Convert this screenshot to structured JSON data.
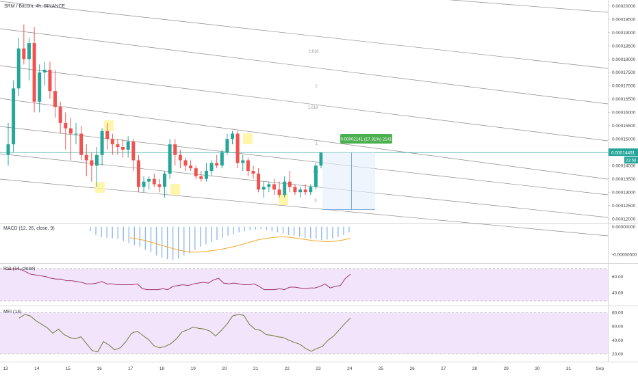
{
  "header": {
    "title": "SRM / Bitcoin, 4h, BINANCE"
  },
  "chart_data": [
    {
      "type": "candlestick",
      "title": "SRM / Bitcoin, 4h, BINANCE",
      "y_ticks": [
        "0.00012000",
        "0.00012500",
        "0.00013000",
        "0.00013500",
        "0.00014000",
        "0.00014500",
        "0.00015000",
        "0.00015500",
        "0.00016000",
        "0.00016500",
        "0.00017000",
        "0.00017500",
        "0.00018000",
        "0.00018500",
        "0.00019000",
        "0.00019500",
        "0.00020000"
      ],
      "ylim": [
        0.0001185,
        0.0002022
      ],
      "x_ticks": [
        "13",
        "14",
        "15",
        "16",
        "17",
        "18",
        "19",
        "20",
        "21",
        "22",
        "23",
        "24",
        "25",
        "26",
        "27",
        "28",
        "29",
        "30",
        "31",
        "Sep"
      ],
      "x_start_day": 13,
      "candles_per_day": 6,
      "ohlc": [
        [
          0.000144,
          0.000156,
          0.00014,
          0.000148
        ],
        [
          0.000148,
          0.000172,
          0.000145,
          0.000169
        ],
        [
          0.000169,
          0.000188,
          0.000166,
          0.000184
        ],
        [
          0.000184,
          0.000193,
          0.000178,
          0.00018
        ],
        [
          0.00018,
          0.000188,
          0.000172,
          0.000186
        ],
        [
          0.000186,
          0.000192,
          0.00016,
          0.000164
        ],
        [
          0.000164,
          0.000178,
          0.00016,
          0.000175
        ],
        [
          0.000175,
          0.000179,
          0.00017,
          0.000176
        ],
        [
          0.000176,
          0.000179,
          0.000165,
          0.000168
        ],
        [
          0.000168,
          0.000176,
          0.000158,
          0.000162
        ],
        [
          0.000162,
          0.000164,
          0.000152,
          0.000156
        ],
        [
          0.000156,
          0.00016,
          0.000146,
          0.000154
        ],
        [
          0.000154,
          0.000158,
          0.000142,
          0.000152
        ],
        [
          0.000152,
          0.000156,
          0.000148,
          0.000152
        ],
        [
          0.000152,
          0.000155,
          0.000142,
          0.000144
        ],
        [
          0.000144,
          0.000148,
          0.000136,
          0.000142
        ],
        [
          0.000142,
          0.000145,
          0.000134,
          0.00014
        ],
        [
          0.00014,
          0.000147,
          0.000132,
          0.000144
        ],
        [
          0.000144,
          0.000154,
          0.00014,
          0.000153
        ],
        [
          0.000153,
          0.000156,
          0.000146,
          0.00015
        ],
        [
          0.00015,
          0.000152,
          0.000144,
          0.000148
        ],
        [
          0.000148,
          0.00015,
          0.000144,
          0.000147
        ],
        [
          0.000147,
          0.00015,
          0.000143,
          0.000146
        ],
        [
          0.000146,
          0.000151,
          0.000143,
          0.000149
        ],
        [
          0.000149,
          0.00015,
          0.000138,
          0.000142
        ],
        [
          0.000142,
          0.000144,
          0.00013,
          0.000132
        ],
        [
          0.000132,
          0.000136,
          0.00013,
          0.000134
        ],
        [
          0.000134,
          0.000136,
          0.000131,
          0.000135
        ],
        [
          0.000135,
          0.000137,
          0.000132,
          0.000133
        ],
        [
          0.000133,
          0.000135,
          0.00013,
          0.000132
        ],
        [
          0.000132,
          0.000138,
          0.000128,
          0.000137
        ],
        [
          0.000137,
          0.00015,
          0.000135,
          0.000148
        ],
        [
          0.000148,
          0.00015,
          0.00014,
          0.000144
        ],
        [
          0.000144,
          0.000146,
          0.000139,
          0.000142
        ],
        [
          0.000142,
          0.000143,
          0.000138,
          0.00014
        ],
        [
          0.00014,
          0.000142,
          0.000138,
          0.000139
        ],
        [
          0.000139,
          0.00014,
          0.000135,
          0.000136
        ],
        [
          0.000136,
          0.000138,
          0.000134,
          0.000135
        ],
        [
          0.000135,
          0.000141,
          0.000134,
          0.000138
        ],
        [
          0.000138,
          0.000142,
          0.000136,
          0.000141
        ],
        [
          0.000141,
          0.000144,
          0.000139,
          0.00014
        ],
        [
          0.00014,
          0.000146,
          0.000139,
          0.000145
        ],
        [
          0.000145,
          0.000152,
          0.000144,
          0.00015
        ],
        [
          0.00015,
          0.000153,
          0.000148,
          0.000152
        ],
        [
          0.000152,
          0.000153,
          0.000139,
          0.000141
        ],
        [
          0.000141,
          0.000144,
          0.000138,
          0.000142
        ],
        [
          0.000142,
          0.000143,
          0.000136,
          0.000138
        ],
        [
          0.000138,
          0.00014,
          0.000135,
          0.000137
        ],
        [
          0.000137,
          0.000139,
          0.00013,
          0.000131
        ],
        [
          0.000131,
          0.000134,
          0.000128,
          0.000132
        ],
        [
          0.000132,
          0.000134,
          0.00013,
          0.000133
        ],
        [
          0.000133,
          0.000135,
          0.000129,
          0.000131
        ],
        [
          0.000131,
          0.000134,
          0.000128,
          0.000129
        ],
        [
          0.000129,
          0.000136,
          0.000128,
          0.000134
        ],
        [
          0.000134,
          0.000138,
          0.00013,
          0.000132
        ],
        [
          0.000132,
          0.000133,
          0.000129,
          0.00013
        ],
        [
          0.00013,
          0.000132,
          0.000128,
          0.000131
        ],
        [
          0.000131,
          0.000133,
          0.000129,
          0.00013
        ],
        [
          0.00013,
          0.000133,
          0.000129,
          0.000132
        ],
        [
          0.000132,
          0.000141,
          0.000131,
          0.00014
        ],
        [
          0.00014,
          0.000145,
          0.000139,
          0.0001449
        ]
      ],
      "last_price": "0.00014491",
      "countdown": "23:58",
      "measure_label": "0.00002141 (17.31%) 2141",
      "fib_labels": [
        "2.618",
        "2",
        "1.618",
        "1",
        "0.5",
        "0"
      ],
      "colors": {
        "up": "#26a69a",
        "down": "#ef5350",
        "highlight": "#fff59d",
        "price_line": "#26a69a",
        "measure": "#4caf50"
      }
    },
    {
      "type": "bar",
      "title": "MACD (12, 26, close, 9)",
      "y_ticks": [
        "0.00000000",
        "-0.00000500"
      ],
      "ylim": [
        -6.5e-06,
        6e-07
      ],
      "histogram": [
        -8e-07,
        -1.5e-06,
        -1.9e-06,
        -2e-06,
        -2.1e-06,
        -2.2e-06,
        -2.6e-06,
        -3e-06,
        -3.3e-06,
        -3.6e-06,
        -4.2e-06,
        -4.6e-06,
        -5.2e-06,
        -5.6e-06,
        -5.9e-06,
        -6.1e-06,
        -5.8e-06,
        -5.2e-06,
        -4.8e-06,
        -4.2e-06,
        -3.6e-06,
        -3.2e-06,
        -2.8e-06,
        -2.4e-06,
        -2e-06,
        -1.6e-06,
        -1.3e-06,
        -1e-06,
        -8e-07,
        -6e-07,
        -5e-07,
        -4e-07,
        -6e-07,
        -8e-07,
        -1e-06,
        -1.2e-06,
        -1.5e-06,
        -1.6e-06,
        -1.8e-06,
        -2e-06,
        -2.1e-06,
        -2.2e-06,
        -2.4e-06,
        -2.3e-06,
        -2.1e-06,
        -1.8e-06,
        -1.5e-06,
        -1e-06
      ],
      "signal": [
        -2e-06,
        -2.2e-06,
        -2.5e-06,
        -2.9e-06,
        -3.3e-06,
        -3.7e-06,
        -4.1e-06,
        -4.4e-06,
        -4.6e-06,
        -4.6e-06,
        -4.5e-06,
        -4.3e-06,
        -4.1e-06,
        -3.8e-06,
        -3.5e-06,
        -3.1e-06,
        -2.7e-06,
        -2.3e-06,
        -2.1e-06,
        -1.9e-06,
        -1.8e-06,
        -1.9e-06,
        -2.1e-06,
        -2.3e-06,
        -2.5e-06,
        -2.6e-06,
        -2.7e-06,
        -2.6e-06,
        -2.4e-06,
        -2.1e-06
      ],
      "colors": {
        "histogram": "#90b8f0",
        "signal": "#f5a623"
      }
    },
    {
      "type": "line",
      "title": "RSI (14, close)",
      "y_ticks": [
        "60.00",
        "40.00"
      ],
      "ylim": [
        25,
        75
      ],
      "values": [
        69,
        69,
        70,
        69,
        66,
        63,
        62,
        61,
        60,
        58,
        57,
        57,
        55,
        55,
        54,
        53,
        51,
        51,
        52,
        54,
        51,
        51,
        50,
        50,
        50,
        50,
        51,
        45,
        44,
        44,
        44,
        45,
        44,
        48,
        49,
        50,
        49,
        51,
        52,
        53,
        52,
        56,
        58,
        52,
        51,
        52,
        51,
        50,
        50,
        51,
        48,
        44,
        44,
        44,
        45,
        44,
        47,
        47,
        46,
        45,
        46,
        46,
        48,
        51,
        46,
        48,
        49,
        58,
        63
      ],
      "colors": {
        "line": "#a0326e",
        "band": "#f1e4fb"
      }
    },
    {
      "type": "line",
      "title": "MFI (14)",
      "y_ticks": [
        "80.00",
        "60.00",
        "40.00",
        "20.00"
      ],
      "ylim": [
        10,
        88
      ],
      "values": [
        72,
        77,
        75,
        68,
        63,
        58,
        50,
        56,
        48,
        44,
        42,
        45,
        35,
        25,
        23,
        38,
        33,
        26,
        29,
        38,
        50,
        53,
        47,
        41,
        32,
        29,
        31,
        35,
        42,
        52,
        55,
        59,
        57,
        56,
        53,
        46,
        54,
        63,
        75,
        77,
        76,
        63,
        56,
        54,
        48,
        47,
        45,
        44,
        40,
        37,
        34,
        28,
        24,
        28,
        31,
        40,
        46,
        55,
        64,
        72
      ],
      "colors": {
        "line": "#6d7a35",
        "band": "#f1e4fb"
      }
    }
  ]
}
